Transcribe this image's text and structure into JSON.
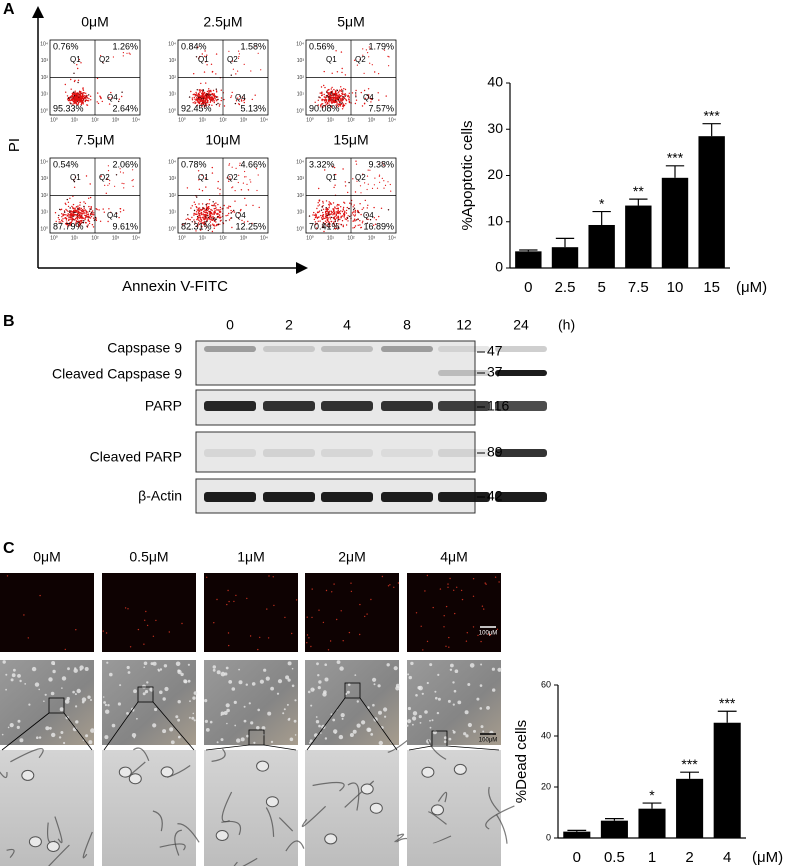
{
  "panel_a": {
    "label": "A",
    "flow": {
      "y_label": "PI",
      "x_label": "Annexin V-FITC",
      "axis_ticks": [
        "10⁰",
        "10¹",
        "10²",
        "10³",
        "10⁴"
      ],
      "quadrant_labels": [
        "Q1",
        "Q2",
        "Q4"
      ],
      "plots": [
        {
          "title": "0μM",
          "q1": "0.76%",
          "q2": "1.26%",
          "q3": "95.33%",
          "q4": "2.64%"
        },
        {
          "title": "2.5μM",
          "q1": "0.84%",
          "q2": "1.58%",
          "q3": "92.45%",
          "q4": "5.13%"
        },
        {
          "title": "5μM",
          "q1": "0.56%",
          "q2": "1.79%",
          "q3": "90.08%",
          "q4": "7.57%"
        },
        {
          "title": "7.5μM",
          "q1": "0.54%",
          "q2": "2.06%",
          "q3": "87.79%",
          "q4": "9.61%"
        },
        {
          "title": "10μM",
          "q1": "0.78%",
          "q2": "4.66%",
          "q3": "82.31%",
          "q4": "12.25%"
        },
        {
          "title": "15μM",
          "q1": "3.32%",
          "q2": "9.38%",
          "q3": "70.41%",
          "q4": "16.89%"
        }
      ]
    },
    "chart": {
      "type": "bar",
      "y_label": "%Apoptotic cells",
      "categories": [
        "0",
        "2.5",
        "5",
        "7.5",
        "10",
        "15"
      ],
      "unit": "(μM)",
      "values": [
        3.6,
        4.5,
        9.3,
        13.5,
        19.5,
        28.5
      ],
      "errors": [
        0.3,
        1.9,
        2.9,
        1.4,
        2.6,
        2.7
      ],
      "significance": [
        null,
        null,
        "*",
        "**",
        "***",
        "***"
      ],
      "ylim": [
        0,
        40
      ],
      "yticks": [
        0,
        10,
        20,
        30,
        40
      ],
      "color": "#000000"
    }
  },
  "panel_b": {
    "label": "B",
    "time_points": [
      "0",
      "2",
      "4",
      "8",
      "12",
      "24"
    ],
    "time_unit": "(h)",
    "rows": [
      {
        "name": "Capspase 9",
        "mw": "47"
      },
      {
        "name": "Cleaved Capspase 9",
        "mw": "37"
      },
      {
        "name": "PARP",
        "mw": "116"
      },
      {
        "name": "Cleaved PARP",
        "mw": "89"
      },
      {
        "name": "β-Actin",
        "mw": "42"
      }
    ]
  },
  "panel_c": {
    "label": "C",
    "concentrations": [
      "0μM",
      "0.5μM",
      "1μM",
      "2μM",
      "4μM"
    ],
    "scale_bars": [
      "100μM",
      "100μM"
    ],
    "chart": {
      "type": "bar",
      "y_label": "%Dead cells",
      "categories": [
        "0",
        "0.5",
        "1",
        "2",
        "4"
      ],
      "unit": "(μM)",
      "values": [
        2.5,
        6.8,
        11.5,
        23.2,
        45.2
      ],
      "errors": [
        0.5,
        0.8,
        2.2,
        2.6,
        4.5
      ],
      "significance": [
        null,
        null,
        "*",
        "***",
        "***"
      ],
      "ylim": [
        0,
        60
      ],
      "yticks": [
        0,
        20,
        40,
        60
      ],
      "color": "#000000"
    }
  }
}
